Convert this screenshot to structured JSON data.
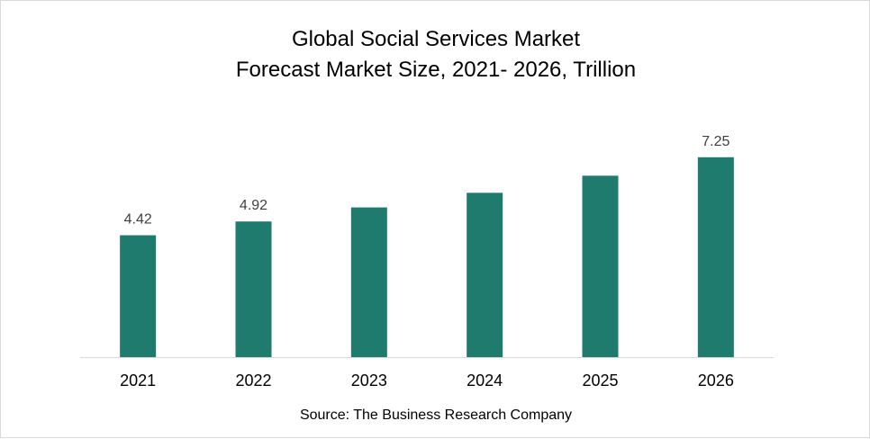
{
  "chart_data": {
    "type": "bar",
    "title": "Global Social Services Market",
    "subtitle": "Forecast Market Size, 2021- 2026, Trillion",
    "categories": [
      "2021",
      "2022",
      "2023",
      "2024",
      "2025",
      "2026"
    ],
    "values": [
      4.42,
      4.92,
      5.43,
      5.96,
      6.58,
      7.25
    ],
    "data_labels": [
      "4.42",
      "4.92",
      "",
      "",
      "",
      "7.25"
    ],
    "xlabel": "",
    "ylabel": "",
    "ylim": [
      0,
      8
    ],
    "grid": false,
    "legend": "none",
    "bar_color": "#1e7b6d"
  },
  "source": "Source: The Business Research Company"
}
